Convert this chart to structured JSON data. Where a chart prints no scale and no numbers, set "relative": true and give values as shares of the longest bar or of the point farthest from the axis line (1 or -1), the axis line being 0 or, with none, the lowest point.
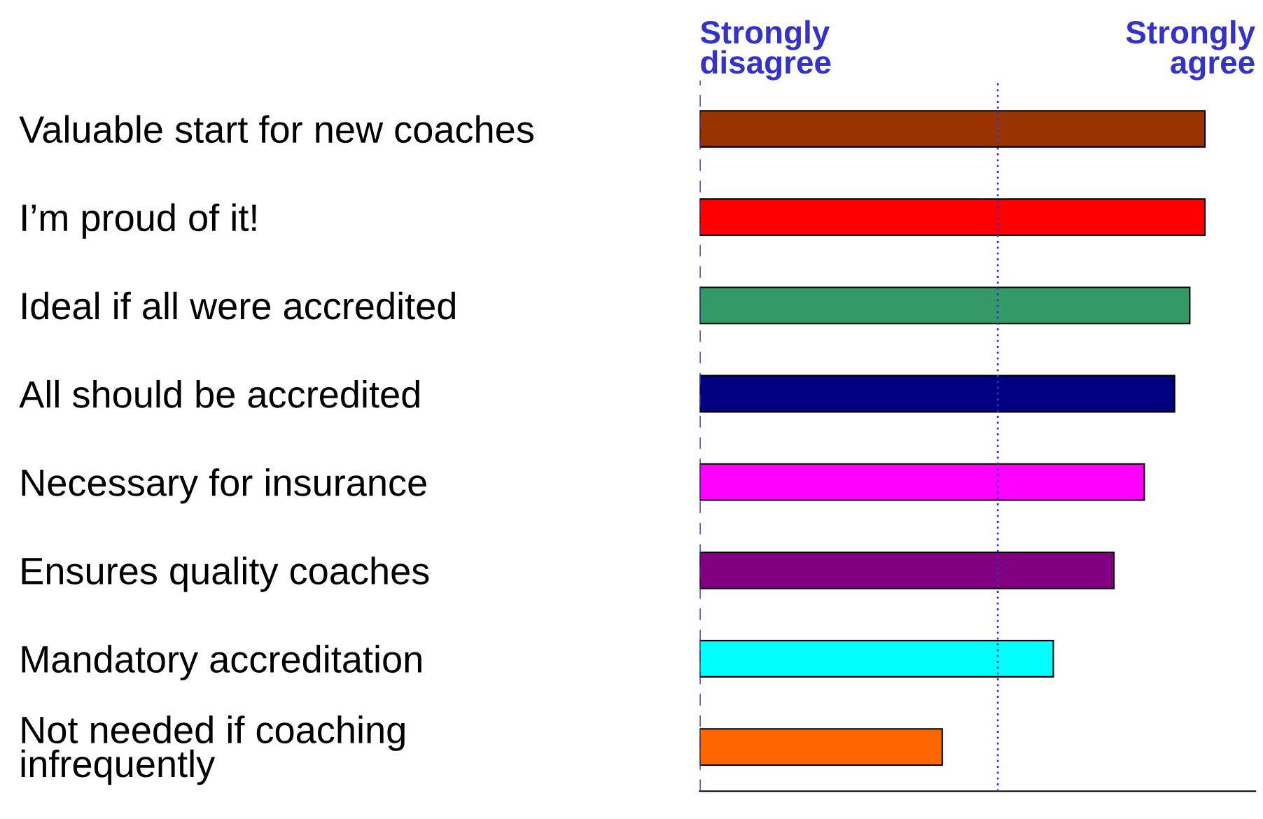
{
  "chart_data": {
    "type": "bar",
    "orientation": "horizontal",
    "relative": true,
    "categories": [
      "Valuable start for new coaches",
      "I’m proud of it!",
      "Ideal if all were accredited",
      "All should be accredited",
      "Necessary for insurance",
      "Ensures quality coaches",
      "Mandatory accreditation",
      "Not needed if coaching\ninfrequently"
    ],
    "values": [
      1.0,
      1.0,
      0.97,
      0.94,
      0.88,
      0.82,
      0.7,
      0.48
    ],
    "colors": [
      "#993300",
      "#ff0000",
      "#339966",
      "#000080",
      "#ff00ff",
      "#800080",
      "#00ffff",
      "#ff6600"
    ],
    "annotations": [
      "Strongly\ndisagree",
      "Strongly\nagree"
    ],
    "ref_lines": [
      {
        "axis": "x",
        "value": 0,
        "color": "#3333cc",
        "line_style": "dashed"
      },
      {
        "axis": "x",
        "value": 0.59,
        "color": "#3333cc",
        "line_style": "dotted"
      }
    ]
  }
}
